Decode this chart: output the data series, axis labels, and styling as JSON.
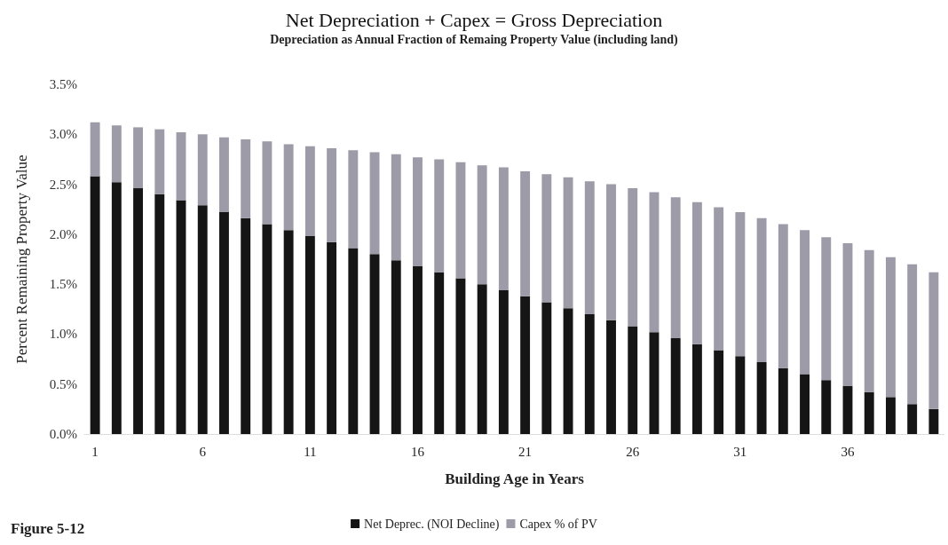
{
  "chart_data": {
    "type": "bar",
    "title": "Net Depreciation + Capex = Gross Depreciation",
    "subtitle": "Depreciation as Annual Fraction of Remaing Property Value (including land)",
    "xlabel": "Building Age in Years",
    "ylabel": "Percent Remaining Property Value",
    "annotations": [
      "Figure 5-12"
    ],
    "categories": [
      "1",
      null,
      null,
      null,
      null,
      "6",
      null,
      null,
      null,
      null,
      "11",
      null,
      null,
      null,
      null,
      "16",
      null,
      null,
      null,
      null,
      "21",
      null,
      null,
      null,
      null,
      "26",
      null,
      null,
      null,
      null,
      "31",
      null,
      null,
      null,
      null,
      "36",
      null,
      null,
      null,
      null
    ],
    "stacked": true,
    "legend": "bottom",
    "grid": false,
    "ylim": [
      0,
      3.5
    ],
    "yticks": [
      {
        "value": 0,
        "label": "0.0%"
      },
      {
        "value": 0.5,
        "label": "0.5%"
      },
      {
        "value": 1,
        "label": "1.0%"
      },
      {
        "value": 1.5,
        "label": "1.5%"
      },
      {
        "value": 2,
        "label": "2.0%"
      },
      {
        "value": 2.5,
        "label": "2.5%"
      },
      {
        "value": 3,
        "label": "3.0%"
      },
      {
        "value": 3.5,
        "label": "3.5%"
      }
    ],
    "series": [
      {
        "name": "Net Deprec. (NOI Decline)",
        "color": "#151515",
        "values": [
          2.58,
          2.52,
          2.46,
          2.4,
          2.34,
          2.29,
          2.22,
          2.16,
          2.1,
          2.04,
          1.98,
          1.92,
          1.86,
          1.8,
          1.74,
          1.68,
          1.62,
          1.56,
          1.5,
          1.44,
          1.38,
          1.32,
          1.26,
          1.2,
          1.14,
          1.08,
          1.02,
          0.96,
          0.9,
          0.84,
          0.78,
          0.72,
          0.66,
          0.6,
          0.54,
          0.48,
          0.42,
          0.37,
          0.3,
          0.25
        ]
      },
      {
        "name": "Capex % of PV",
        "color": "#9d9ba8",
        "values": [
          0.54,
          0.57,
          0.61,
          0.65,
          0.68,
          0.71,
          0.75,
          0.79,
          0.83,
          0.86,
          0.9,
          0.94,
          0.98,
          1.02,
          1.06,
          1.09,
          1.13,
          1.16,
          1.19,
          1.23,
          1.25,
          1.28,
          1.31,
          1.33,
          1.36,
          1.38,
          1.4,
          1.41,
          1.42,
          1.43,
          1.44,
          1.44,
          1.44,
          1.44,
          1.43,
          1.43,
          1.42,
          1.4,
          1.4,
          1.37
        ]
      }
    ]
  }
}
